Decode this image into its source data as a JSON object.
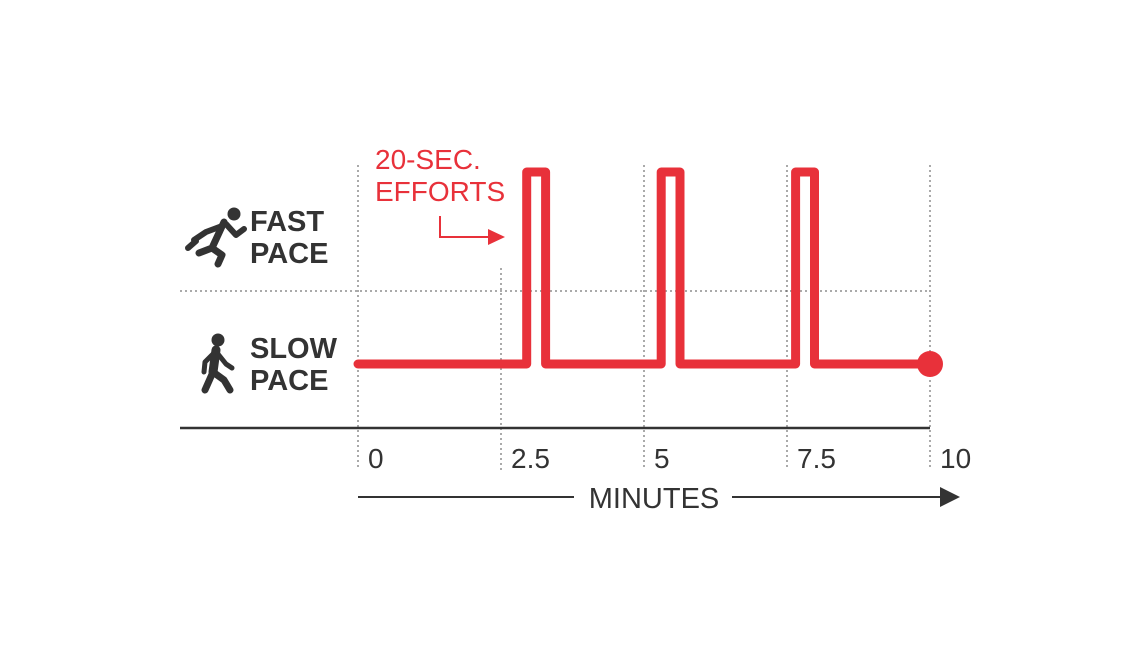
{
  "chart_data": {
    "type": "line",
    "x_unit_label": "MINUTES",
    "x_ticks": [
      "0",
      "2.5",
      "5",
      "7.5",
      "10"
    ],
    "xlim": [
      0,
      10
    ],
    "y_levels": [
      {
        "label_line1": "FAST",
        "label_line2": "PACE",
        "icon": "running-person-icon"
      },
      {
        "label_line1": "SLOW",
        "label_line2": "PACE",
        "icon": "walking-person-icon"
      }
    ],
    "annotation": {
      "line1": "20-SEC.",
      "line2": "EFFORTS"
    },
    "series": [
      {
        "pace_profile": [
          {
            "x": 0,
            "level": "slow"
          },
          {
            "x": 2.95,
            "level": "slow"
          },
          {
            "x": 2.95,
            "level": "fast"
          },
          {
            "x": 3.28,
            "level": "fast"
          },
          {
            "x": 3.28,
            "level": "slow"
          },
          {
            "x": 5.3,
            "level": "slow"
          },
          {
            "x": 5.3,
            "level": "fast"
          },
          {
            "x": 5.63,
            "level": "fast"
          },
          {
            "x": 5.63,
            "level": "slow"
          },
          {
            "x": 7.65,
            "level": "slow"
          },
          {
            "x": 7.65,
            "level": "fast"
          },
          {
            "x": 7.98,
            "level": "fast"
          },
          {
            "x": 7.98,
            "level": "slow"
          },
          {
            "x": 10,
            "level": "slow"
          }
        ]
      }
    ],
    "colors": {
      "series": "#e8313a",
      "text": "#333333",
      "annotation": "#e8313a",
      "grid": "#555555"
    }
  }
}
